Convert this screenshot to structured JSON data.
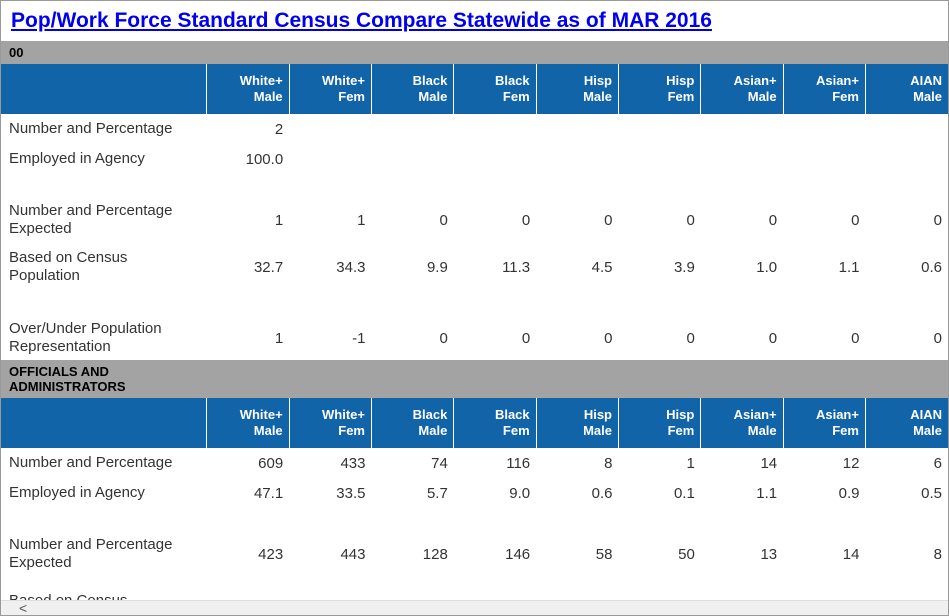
{
  "header": {
    "title": "Pop/Work Force Standard Census Compare Statewide as of MAR 2016"
  },
  "sections": [
    {
      "name": "00",
      "columns": [
        [
          "White+",
          "Male"
        ],
        [
          "White+",
          "Fem"
        ],
        [
          "Black",
          "Male"
        ],
        [
          "Black",
          "Fem"
        ],
        [
          "Hisp",
          "Male"
        ],
        [
          "Hisp",
          "Fem"
        ],
        [
          "Asian+",
          "Male"
        ],
        [
          "Asian+",
          "Fem"
        ],
        [
          "AIAN",
          "Male"
        ]
      ],
      "rows": [
        {
          "label": "Number and Percentage",
          "values": [
            "2"
          ]
        },
        {
          "label": "Employed in Agency",
          "values": [
            "100.0"
          ]
        },
        {
          "label": "Number and Percentage Expected",
          "values": [
            "1",
            "1",
            "0",
            "0",
            "0",
            "0",
            "0",
            "0",
            "0"
          ]
        },
        {
          "label": "Based on Census Population",
          "values": [
            "32.7",
            "34.3",
            "9.9",
            "11.3",
            "4.5",
            "3.9",
            "1.0",
            "1.1",
            "0.6"
          ]
        },
        {
          "label": "Over/Under Population Representation",
          "values": [
            "1",
            "-1",
            "0",
            "0",
            "0",
            "0",
            "0",
            "0",
            "0"
          ]
        }
      ]
    },
    {
      "name": "OFFICIALS AND ADMINISTRATORS",
      "columns": [
        [
          "White+",
          "Male"
        ],
        [
          "White+",
          "Fem"
        ],
        [
          "Black",
          "Male"
        ],
        [
          "Black",
          "Fem"
        ],
        [
          "Hisp",
          "Male"
        ],
        [
          "Hisp",
          "Fem"
        ],
        [
          "Asian+",
          "Male"
        ],
        [
          "Asian+",
          "Fem"
        ],
        [
          "AIAN",
          "Male"
        ]
      ],
      "rows": [
        {
          "label": "Number and Percentage",
          "values": [
            "609",
            "433",
            "74",
            "116",
            "8",
            "1",
            "14",
            "12",
            "6"
          ]
        },
        {
          "label": "Employed in Agency",
          "values": [
            "47.1",
            "33.5",
            "5.7",
            "9.0",
            "0.6",
            "0.1",
            "1.1",
            "0.9",
            "0.5"
          ]
        },
        {
          "label": "Number and Percentage Expected",
          "values": [
            "423",
            "443",
            "128",
            "146",
            "58",
            "50",
            "13",
            "14",
            "8"
          ]
        },
        {
          "label": "Based on Census",
          "values": []
        }
      ]
    }
  ]
}
